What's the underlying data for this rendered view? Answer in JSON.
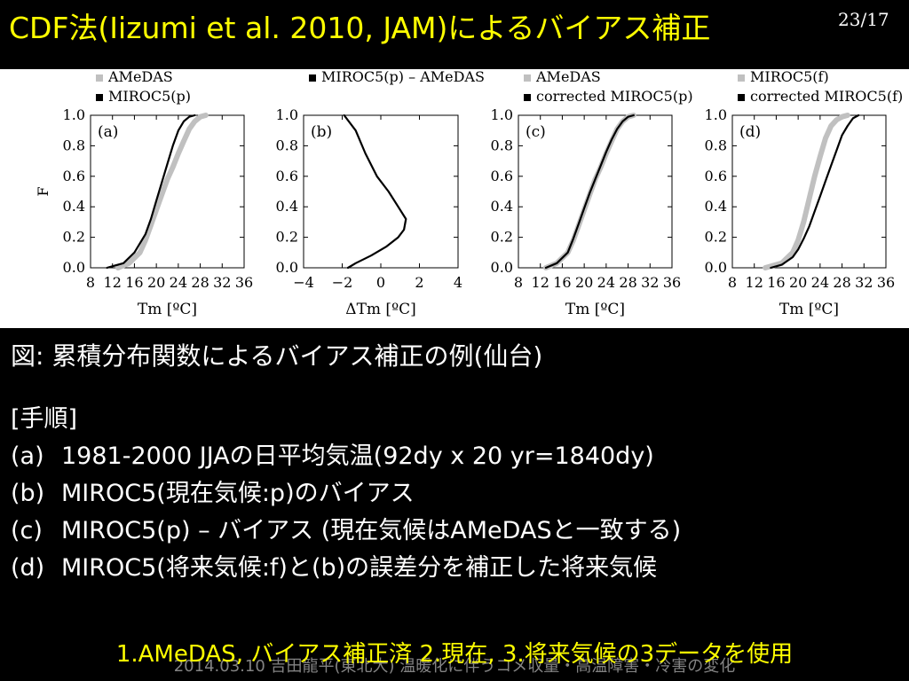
{
  "slide": {
    "title": "CDF法(Iizumi et al. 2010, JAM)によるバイアス補正",
    "page_number": "23/17",
    "caption": "図: 累積分布関数によるバイアス補正の例(仙台)",
    "steps_heading": "[手順]",
    "steps": [
      {
        "label": "(a)",
        "text": "1981-2000 JJAの日平均気温(92dy x 20 yr=1840dy)"
      },
      {
        "label": "(b)",
        "text": "MIROC5(現在気候:p)のバイアス"
      },
      {
        "label": "(c)",
        "text": "MIROC5(p) – バイアス (現在気候はAMeDASと一致する)"
      },
      {
        "label": "(d)",
        "text": "MIROC5(将来気候:f)と(b)の誤差分を補正した将来気候"
      }
    ],
    "note": "1.AMeDAS, バイアス補正済 2.現在, 3.将来気候の3データを使用",
    "footer": "2014.03.10 吉田龍平(東北大) 温暖化に伴うコメ収量・高温障害・冷害の変化"
  },
  "colors": {
    "title": "#ffff00",
    "gray_series": "#c0c0c0",
    "black_series": "#000000"
  },
  "chart_data": [
    {
      "type": "line",
      "panel_label": "(a)",
      "xlabel": "Tm [ºC]",
      "ylabel": "F",
      "xlim": [
        8,
        36
      ],
      "ylim": [
        0,
        1
      ],
      "xticks": [
        8,
        12,
        16,
        20,
        24,
        28,
        32,
        36
      ],
      "yticks": [
        0.0,
        0.2,
        0.4,
        0.6,
        0.8,
        1.0
      ],
      "series": [
        {
          "name": "AMeDAS",
          "color": "gray",
          "x": [
            13,
            15,
            17,
            18,
            19,
            20,
            21,
            22,
            23,
            24,
            25,
            26,
            27,
            28,
            29
          ],
          "y": [
            0.0,
            0.03,
            0.1,
            0.18,
            0.28,
            0.38,
            0.48,
            0.58,
            0.66,
            0.75,
            0.83,
            0.91,
            0.96,
            0.99,
            1.0
          ]
        },
        {
          "name": "MIROC5(p)",
          "color": "black",
          "x": [
            11,
            14,
            16,
            18,
            19,
            20,
            21,
            22,
            23,
            24,
            25,
            26,
            27
          ],
          "y": [
            0.0,
            0.03,
            0.1,
            0.22,
            0.32,
            0.44,
            0.56,
            0.68,
            0.8,
            0.9,
            0.96,
            0.99,
            1.0
          ]
        }
      ]
    },
    {
      "type": "line",
      "panel_label": "(b)",
      "xlabel": "ΔTm [ºC]",
      "xlim": [
        -4,
        4
      ],
      "ylim": [
        0,
        1
      ],
      "xticks": [
        -4,
        -2,
        0,
        2,
        4
      ],
      "yticks": [
        0.0,
        0.2,
        0.4,
        0.6,
        0.8,
        1.0
      ],
      "series": [
        {
          "name": "MIROC5(p) – AMeDAS",
          "color": "black",
          "x": [
            -1.7,
            -1.3,
            -0.5,
            0.3,
            0.9,
            1.2,
            1.3,
            0.9,
            0.4,
            -0.2,
            -0.8,
            -1.3,
            -1.9
          ],
          "y": [
            0.0,
            0.03,
            0.08,
            0.14,
            0.2,
            0.25,
            0.32,
            0.4,
            0.5,
            0.6,
            0.75,
            0.9,
            1.0
          ]
        }
      ]
    },
    {
      "type": "line",
      "panel_label": "(c)",
      "xlabel": "Tm [ºC]",
      "xlim": [
        8,
        36
      ],
      "ylim": [
        0,
        1
      ],
      "xticks": [
        8,
        12,
        16,
        20,
        24,
        28,
        32,
        36
      ],
      "yticks": [
        0.0,
        0.2,
        0.4,
        0.6,
        0.8,
        1.0
      ],
      "series": [
        {
          "name": "AMeDAS",
          "color": "gray",
          "x": [
            13,
            15,
            17,
            18,
            19,
            20,
            21,
            22,
            23,
            24,
            25,
            26,
            27,
            28,
            29
          ],
          "y": [
            0.0,
            0.03,
            0.1,
            0.18,
            0.28,
            0.38,
            0.48,
            0.58,
            0.66,
            0.75,
            0.83,
            0.91,
            0.96,
            0.99,
            1.0
          ]
        },
        {
          "name": "corrected MIROC5(p)",
          "color": "black",
          "x": [
            13,
            15,
            17,
            18,
            19,
            20,
            21,
            22,
            23,
            24,
            25,
            26,
            27,
            28,
            29
          ],
          "y": [
            0.0,
            0.03,
            0.1,
            0.19,
            0.29,
            0.39,
            0.49,
            0.58,
            0.67,
            0.76,
            0.84,
            0.91,
            0.96,
            0.99,
            1.0
          ]
        }
      ]
    },
    {
      "type": "line",
      "panel_label": "(d)",
      "xlabel": "Tm [ºC]",
      "xlim": [
        8,
        36
      ],
      "ylim": [
        0,
        1
      ],
      "xticks": [
        8,
        12,
        16,
        20,
        24,
        28,
        32,
        36
      ],
      "yticks": [
        0.0,
        0.2,
        0.4,
        0.6,
        0.8,
        1.0
      ],
      "series": [
        {
          "name": "MIROC5(f)",
          "color": "gray",
          "x": [
            14,
            17,
            19,
            20,
            21,
            22,
            23,
            24,
            25,
            26,
            27,
            28,
            29
          ],
          "y": [
            0.0,
            0.03,
            0.1,
            0.18,
            0.3,
            0.45,
            0.6,
            0.73,
            0.85,
            0.93,
            0.97,
            0.99,
            1.0
          ]
        },
        {
          "name": "corrected MIROC5(f)",
          "color": "black",
          "x": [
            15,
            17,
            19,
            20,
            21,
            22,
            23,
            24,
            25,
            26,
            27,
            28,
            29,
            30,
            31
          ],
          "y": [
            0.0,
            0.02,
            0.07,
            0.12,
            0.19,
            0.27,
            0.37,
            0.47,
            0.57,
            0.67,
            0.77,
            0.87,
            0.93,
            0.98,
            1.0
          ]
        }
      ]
    }
  ]
}
